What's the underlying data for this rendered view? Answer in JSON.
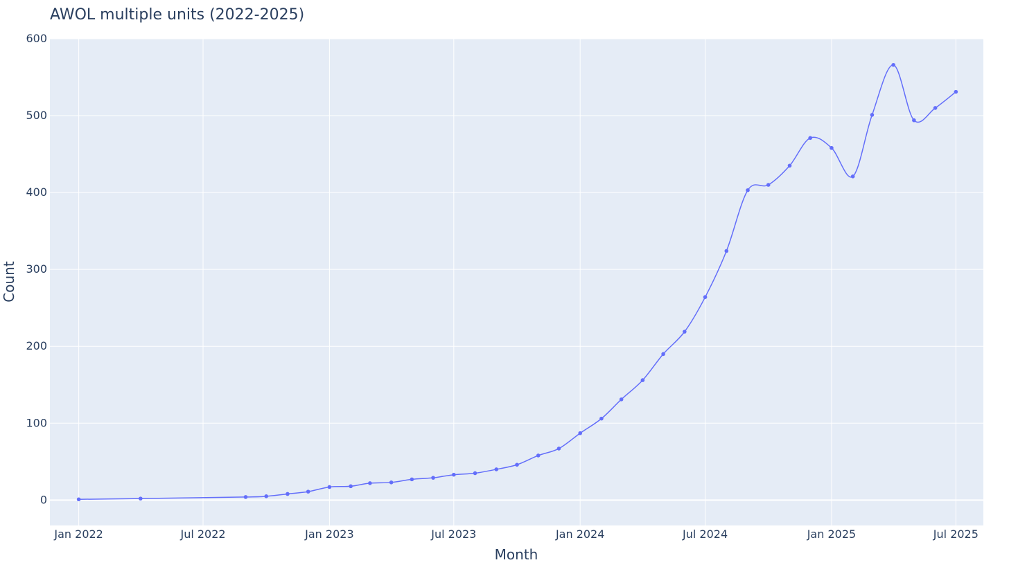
{
  "chart_data": {
    "type": "line",
    "title": "AWOL multiple units (2022-2025)",
    "xlabel": "Month",
    "ylabel": "Count",
    "ylim": [
      -33,
      600
    ],
    "xlim": [
      "2021-11-20",
      "2025-08-10"
    ],
    "yticks": [
      0,
      100,
      200,
      300,
      400,
      500,
      600
    ],
    "xticks": [
      {
        "date": "2022-01-01",
        "label": "Jan 2022"
      },
      {
        "date": "2022-07-01",
        "label": "Jul 2022"
      },
      {
        "date": "2023-01-01",
        "label": "Jan 2023"
      },
      {
        "date": "2023-07-01",
        "label": "Jul 2023"
      },
      {
        "date": "2024-01-01",
        "label": "Jan 2024"
      },
      {
        "date": "2024-07-01",
        "label": "Jul 2024"
      },
      {
        "date": "2025-01-01",
        "label": "Jan 2025"
      },
      {
        "date": "2025-07-01",
        "label": "Jul 2025"
      }
    ],
    "grid": true,
    "colors": {
      "line": "#636efa",
      "plot_bg": "#e5ecf6",
      "grid": "#ffffff",
      "text": "#2a3f5f"
    },
    "series": [
      {
        "x": [
          "2022-01-01",
          "2022-04-01",
          "2022-09-01",
          "2022-10-01",
          "2022-11-01",
          "2022-12-01",
          "2023-01-01",
          "2023-02-01",
          "2023-03-01",
          "2023-04-01",
          "2023-05-01",
          "2023-06-01",
          "2023-07-01",
          "2023-08-01",
          "2023-09-01",
          "2023-10-01",
          "2023-11-01",
          "2023-12-01",
          "2024-01-01",
          "2024-02-01",
          "2024-03-01",
          "2024-04-01",
          "2024-05-01",
          "2024-06-01",
          "2024-07-01",
          "2024-08-01",
          "2024-09-01",
          "2024-10-01",
          "2024-11-01",
          "2024-12-01",
          "2025-01-01",
          "2025-02-01",
          "2025-03-01",
          "2025-04-01",
          "2025-05-01",
          "2025-06-01",
          "2025-07-01"
        ],
        "y": [
          1,
          2,
          4,
          5,
          8,
          11,
          17,
          18,
          22,
          23,
          27,
          29,
          33,
          35,
          40,
          46,
          58,
          67,
          87,
          106,
          131,
          156,
          190,
          219,
          264,
          324,
          403,
          410,
          435,
          471,
          458,
          421,
          501,
          566,
          494,
          510,
          531
        ]
      }
    ]
  }
}
